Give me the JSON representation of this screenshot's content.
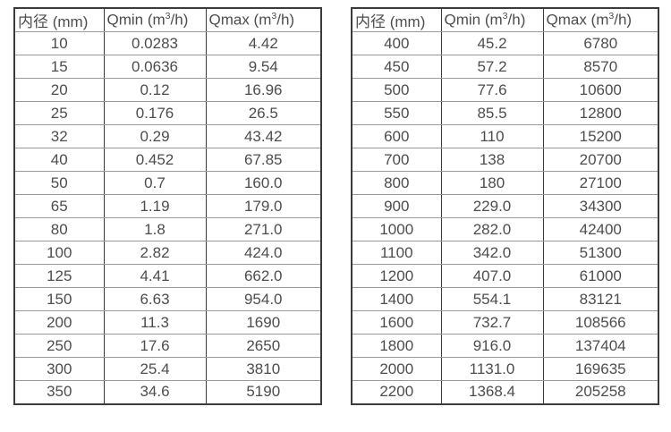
{
  "colors": {
    "background": "#ffffff",
    "text": "#4d4d4d",
    "border_dark": "#3b3b3b",
    "border_light": "#9a9a9a"
  },
  "tables": [
    {
      "name": "flow-table-small-diameters",
      "headers": [
        "内径 (mm)",
        "Qmin (m³/h)",
        "Qmax (m³/h)"
      ],
      "rows": [
        [
          "10",
          "0.0283",
          "4.42"
        ],
        [
          "15",
          "0.0636",
          "9.54"
        ],
        [
          "20",
          "0.12",
          "16.96"
        ],
        [
          "25",
          "0.176",
          "26.5"
        ],
        [
          "32",
          "0.29",
          "43.42"
        ],
        [
          "40",
          "0.452",
          "67.85"
        ],
        [
          "50",
          "0.7",
          "160.0"
        ],
        [
          "65",
          "1.19",
          "179.0"
        ],
        [
          "80",
          "1.8",
          "271.0"
        ],
        [
          "100",
          "2.82",
          "424.0"
        ],
        [
          "125",
          "4.41",
          "662.0"
        ],
        [
          "150",
          "6.63",
          "954.0"
        ],
        [
          "200",
          "11.3",
          "1690"
        ],
        [
          "250",
          "17.6",
          "2650"
        ],
        [
          "300",
          "25.4",
          "3810"
        ],
        [
          "350",
          "34.6",
          "5190"
        ]
      ]
    },
    {
      "name": "flow-table-large-diameters",
      "headers": [
        "内径 (mm)",
        "Qmin (m³/h)",
        "Qmax (m³/h)"
      ],
      "rows": [
        [
          "400",
          "45.2",
          "6780"
        ],
        [
          "450",
          "57.2",
          "8570"
        ],
        [
          "500",
          "77.6",
          "10600"
        ],
        [
          "550",
          "85.5",
          "12800"
        ],
        [
          "600",
          "110",
          "15200"
        ],
        [
          "700",
          "138",
          "20700"
        ],
        [
          "800",
          "180",
          "27100"
        ],
        [
          "900",
          "229.0",
          "34300"
        ],
        [
          "1000",
          "282.0",
          "42400"
        ],
        [
          "1100",
          "342.0",
          "51300"
        ],
        [
          "1200",
          "407.0",
          "61000"
        ],
        [
          "1400",
          "554.1",
          "83121"
        ],
        [
          "1600",
          "732.7",
          "108566"
        ],
        [
          "1800",
          "916.0",
          "137404"
        ],
        [
          "2000",
          "1131.0",
          "169635"
        ],
        [
          "2200",
          "1368.4",
          "205258"
        ]
      ]
    }
  ]
}
